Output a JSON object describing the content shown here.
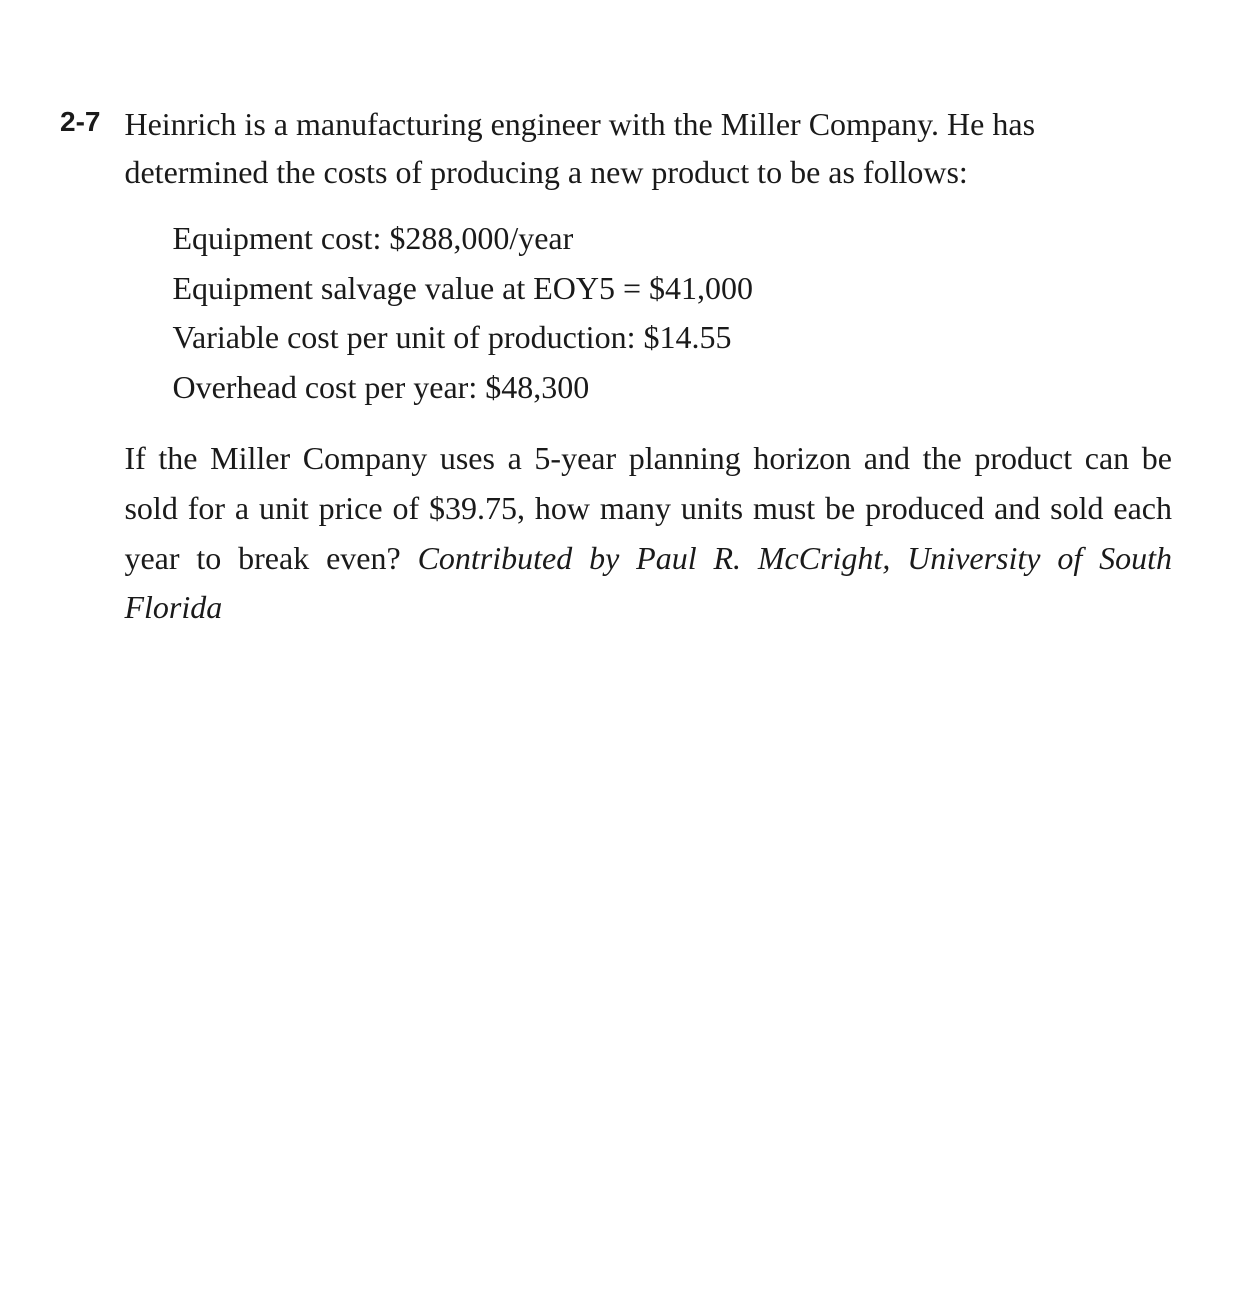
{
  "problem": {
    "number": "2-7",
    "intro": "Heinrich is a manufacturing engineer with the Miller Company. He has determined the costs of producing a new product to be as follows:",
    "costs": {
      "equipment": "Equipment cost: $288,000/year",
      "salvage": "Equipment salvage value at EOY5 = $41,000",
      "variable": "Variable cost per unit of production: $14.55",
      "overhead": "Overhead cost per year: $48,300"
    },
    "question": "If the Miller Company uses a 5-year planning horizon and the product can be sold for a unit price of $39.75, how many units must be produced and sold each year to break even? ",
    "attribution": "Contributed by Paul R. McCright, University of South Florida"
  },
  "style": {
    "background_color": "#ffffff",
    "text_color": "#1a1a1a",
    "body_fontsize": 32,
    "number_fontsize": 28,
    "number_fontweight": "bold",
    "number_fontfamily": "sans-serif",
    "body_fontfamily": "serif",
    "line_height": 1.5
  }
}
